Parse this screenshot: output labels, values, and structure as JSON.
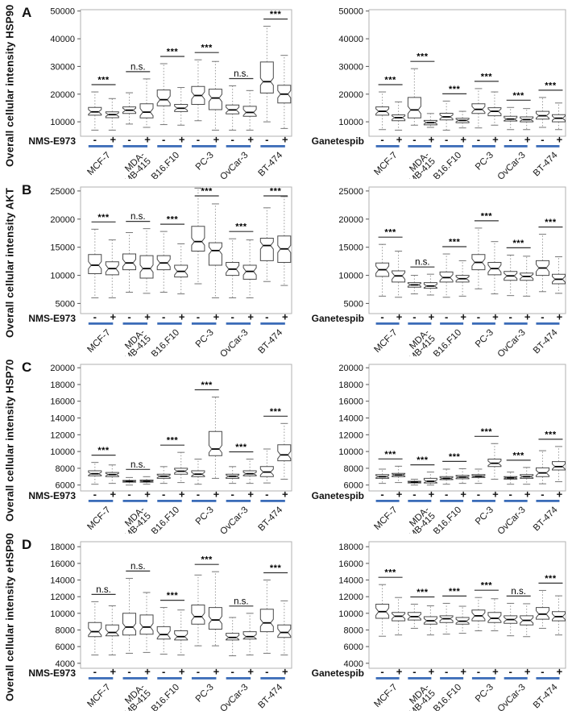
{
  "chart_data": {
    "type": "boxplot",
    "description": "Grid of notched box plots, 4 rows (A-D) x 2 treatment columns, 6 cell lines each with -/+ treatment pairs",
    "box_format": [
      "whisker_low",
      "q1",
      "median",
      "q3",
      "whisker_high"
    ],
    "categories": [
      "MCF-7",
      "MDA-MB-415",
      "B16.F10",
      "PC-3",
      "OvCar-3",
      "BT-474"
    ],
    "categories_display": [
      [
        "MCF-7"
      ],
      [
        "MDA-",
        "MB-415"
      ],
      [
        "B16.F10"
      ],
      [
        "PC-3"
      ],
      [
        "OvCar-3"
      ],
      [
        "BT-474"
      ]
    ],
    "minus_label": "-",
    "plus_label": "+",
    "accent_blue": "#3b6cb8",
    "rows": [
      {
        "panel_label": "A",
        "ylabel": "Overall cellular intensity HSP90",
        "yticks": [
          10000,
          20000,
          30000,
          40000,
          50000
        ],
        "ylim": [
          4800,
          50500
        ],
        "panels": [
          {
            "treatment": "NMS-E973",
            "significance": [
              "***",
              "n.s.",
              "***",
              "***",
              "n.s.",
              "***"
            ],
            "boxes": [
              [
                7000,
                12400,
                13600,
                15200,
                20800
              ],
              [
                7000,
                11500,
                12600,
                13600,
                18400
              ],
              [
                9200,
                13000,
                14200,
                15400,
                20500
              ],
              [
                8000,
                11400,
                13500,
                16500,
                25500
              ],
              [
                9000,
                15800,
                18000,
                21500,
                31000
              ],
              [
                8800,
                13700,
                14900,
                16300,
                22400
              ],
              [
                10400,
                16300,
                19500,
                22800,
                32400
              ],
              [
                7000,
                14400,
                18600,
                21800,
                31800
              ],
              [
                7000,
                12900,
                14300,
                16100,
                23000
              ],
              [
                7000,
                12000,
                13400,
                15600,
                21300
              ],
              [
                10000,
                20400,
                24500,
                31600,
                44500
              ],
              [
                7600,
                16800,
                20000,
                23200,
                34000
              ]
            ]
          },
          {
            "treatment": "Ganetespib",
            "significance": [
              "***",
              "***",
              "***",
              "***",
              "***",
              "***"
            ],
            "boxes": [
              [
                7200,
                12400,
                13800,
                15400,
                20800
              ],
              [
                7000,
                10400,
                11500,
                12500,
                17200
              ],
              [
                8800,
                11400,
                14300,
                18800,
                29200
              ],
              [
                8000,
                8900,
                9700,
                10500,
                13000
              ],
              [
                7000,
                10700,
                11800,
                13100,
                17500
              ],
              [
                7800,
                9700,
                10500,
                11300,
                13800
              ],
              [
                7800,
                13000,
                14500,
                16500,
                22000
              ],
              [
                8800,
                12200,
                13800,
                15100,
                20800
              ],
              [
                7200,
                10300,
                11000,
                12000,
                15200
              ],
              [
                7200,
                10000,
                10800,
                11800,
                14800
              ],
              [
                8000,
                11000,
                12200,
                13800,
                18800
              ],
              [
                7200,
                10000,
                11300,
                12600,
                16800
              ]
            ]
          }
        ]
      },
      {
        "panel_label": "B",
        "ylabel": "Overall cellular intensity AKT",
        "yticks": [
          5000,
          10000,
          15000,
          20000,
          25000
        ],
        "ylim": [
          3200,
          25700
        ],
        "panels": [
          {
            "treatment": "NMS-E973",
            "significance": [
              "***",
              "n.s.",
              "***",
              "***",
              "***",
              "***"
            ],
            "boxes": [
              [
                6000,
                10300,
                11800,
                13700,
                18200
              ],
              [
                6000,
                10100,
                11200,
                12400,
                16300
              ],
              [
                7000,
                11000,
                12200,
                13800,
                17600
              ],
              [
                6800,
                9500,
                11200,
                13500,
                18300
              ],
              [
                7000,
                11000,
                12200,
                13500,
                17800
              ],
              [
                6700,
                9700,
                10700,
                11800,
                15600
              ],
              [
                8500,
                14300,
                16000,
                18700,
                25500
              ],
              [
                6000,
                11800,
                14400,
                15800,
                22700
              ],
              [
                6000,
                10000,
                11100,
                12300,
                16500
              ],
              [
                6000,
                9300,
                10700,
                11800,
                16300
              ],
              [
                8900,
                12600,
                15300,
                16600,
                22000
              ],
              [
                8200,
                12300,
                14700,
                17000,
                24000
              ]
            ]
          },
          {
            "treatment": "Ganetespib",
            "significance": [
              "***",
              "n.s.",
              "***",
              "***",
              "***",
              "***"
            ],
            "boxes": [
              [
                6300,
                9800,
                11000,
                12200,
                15500
              ],
              [
                6100,
                8800,
                9900,
                10800,
                14300
              ],
              [
                6700,
                7900,
                8300,
                8700,
                10000
              ],
              [
                6500,
                7700,
                8100,
                8700,
                10200
              ],
              [
                6100,
                8800,
                9600,
                10600,
                13800
              ],
              [
                6300,
                8800,
                9400,
                10000,
                12600
              ],
              [
                7600,
                11000,
                12300,
                13700,
                18400
              ],
              [
                6700,
                10100,
                11200,
                12300,
                16000
              ],
              [
                6400,
                9100,
                9900,
                10700,
                13600
              ],
              [
                6300,
                9100,
                9800,
                10400,
                13400
              ],
              [
                7100,
                10000,
                11300,
                12600,
                17300
              ],
              [
                6800,
                8500,
                9300,
                10200,
                13300
              ]
            ]
          }
        ]
      },
      {
        "panel_label": "C",
        "ylabel": "Overall cellular intensity HSP70",
        "yticks": [
          6000,
          8000,
          10000,
          12000,
          14000,
          16000,
          18000,
          20000
        ],
        "ylim": [
          5300,
          20400
        ],
        "panels": [
          {
            "treatment": "NMS-E973",
            "significance": [
              "***",
              "n.s.",
              "***",
              "***",
              "***",
              "***"
            ],
            "boxes": [
              [
                6100,
                7100,
                7350,
                7700,
                8700
              ],
              [
                6200,
                7000,
                7250,
                7500,
                8400
              ],
              [
                6000,
                6350,
                6450,
                6550,
                6900
              ],
              [
                6100,
                6350,
                6450,
                6600,
                7000
              ],
              [
                6200,
                6800,
                7050,
                7300,
                8200
              ],
              [
                6300,
                7300,
                7650,
                8000,
                9900
              ],
              [
                6100,
                7000,
                7300,
                7700,
                9100
              ],
              [
                6800,
                9500,
                10300,
                12400,
                16500
              ],
              [
                6200,
                6800,
                7050,
                7300,
                8200
              ],
              [
                6200,
                7100,
                7350,
                7700,
                9100
              ],
              [
                6250,
                7000,
                7550,
                8200,
                10300
              ],
              [
                6700,
                8900,
                9600,
                10800,
                13350
              ]
            ]
          },
          {
            "treatment": "Ganetespib",
            "significance": [
              "***",
              "***",
              "***",
              "***",
              "***",
              "***"
            ],
            "boxes": [
              [
                6200,
                6800,
                7000,
                7250,
                7900
              ],
              [
                6300,
                7000,
                7200,
                7400,
                8250
              ],
              [
                6000,
                6250,
                6350,
                6450,
                6700
              ],
              [
                6000,
                6250,
                6450,
                6800,
                7550
              ],
              [
                6100,
                6650,
                6800,
                7000,
                7900
              ],
              [
                6200,
                6750,
                6950,
                7150,
                7950
              ],
              [
                6200,
                6900,
                7050,
                7250,
                7900
              ],
              [
                6700,
                8200,
                8600,
                9100,
                10950
              ],
              [
                6100,
                6700,
                6850,
                7000,
                7550
              ],
              [
                6100,
                6800,
                7000,
                7250,
                8100
              ],
              [
                6150,
                7000,
                7450,
                8050,
                10100
              ],
              [
                6400,
                7800,
                8200,
                8800,
                10600
              ]
            ]
          }
        ]
      },
      {
        "panel_label": "D",
        "ylabel": "Overall cellular intensity eHSP90",
        "yticks": [
          4000,
          6000,
          8000,
          10000,
          12000,
          14000,
          16000,
          18000
        ],
        "ylim": [
          3400,
          18600
        ],
        "panels": [
          {
            "treatment": "NMS-E973",
            "significance": [
              "n.s.",
              "n.s.",
              "***",
              "***",
              "n.s.",
              "***"
            ],
            "boxes": [
              [
                5000,
                7200,
                7800,
                8900,
                11400
              ],
              [
                5000,
                7300,
                7700,
                8600,
                10900
              ],
              [
                5200,
                7400,
                8350,
                10000,
                14200
              ],
              [
                5300,
                7500,
                8350,
                9800,
                12500
              ],
              [
                5100,
                6900,
                7450,
                8400,
                10700
              ],
              [
                5000,
                6800,
                7200,
                7900,
                10400
              ],
              [
                6100,
                8700,
                9600,
                11000,
                14600
              ],
              [
                6100,
                8100,
                9200,
                10700,
                15000
              ],
              [
                4900,
                6800,
                7100,
                7600,
                9500
              ],
              [
                5000,
                6900,
                7200,
                7800,
                10000
              ],
              [
                5200,
                7800,
                8850,
                10500,
                14000
              ],
              [
                5000,
                7100,
                7700,
                8600,
                11500
              ]
            ]
          },
          {
            "treatment": "Ganetespib",
            "significance": [
              "***",
              "***",
              "***",
              "***",
              "n.s.",
              "***"
            ],
            "boxes": [
              [
                7250,
                9400,
                10200,
                11100,
                13450
              ],
              [
                7400,
                9100,
                9650,
                10100,
                11900
              ],
              [
                8200,
                9200,
                9600,
                10100,
                11100
              ],
              [
                7400,
                8700,
                9100,
                9600,
                10900
              ],
              [
                7500,
                8900,
                9350,
                9700,
                11200
              ],
              [
                7600,
                8700,
                9050,
                9500,
                10850
              ],
              [
                7900,
                9100,
                9700,
                10400,
                11900
              ],
              [
                7900,
                8900,
                9400,
                10100,
                11750
              ],
              [
                7300,
                8800,
                9250,
                9700,
                11200
              ],
              [
                7200,
                8600,
                9150,
                9700,
                11150
              ],
              [
                8200,
                9300,
                9900,
                10700,
                12750
              ],
              [
                7400,
                9100,
                9600,
                10200,
                12100
              ]
            ]
          }
        ]
      }
    ]
  }
}
